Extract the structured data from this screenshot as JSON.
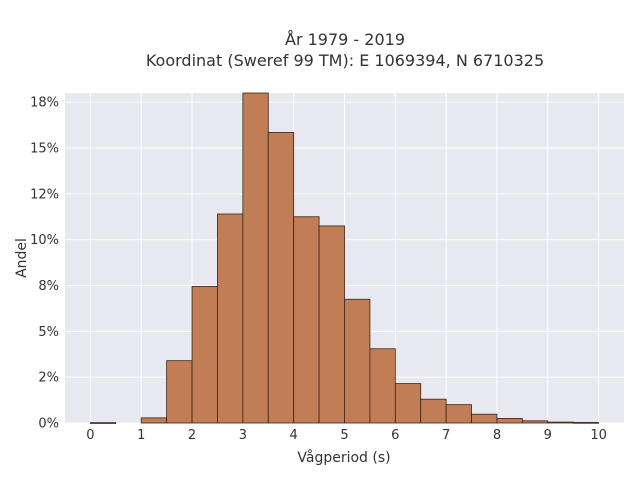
{
  "chart_data": {
    "type": "bar",
    "title_lines": [
      "År 1979 - 2019",
      "Koordinat (Sweref 99 TM): E 1069394, N 6710325"
    ],
    "xlabel": "Vågperiod (s)",
    "ylabel": "Andel",
    "xlim": [
      -0.5,
      10.5
    ],
    "ylim": [
      0,
      0.18
    ],
    "grid": true,
    "bin_width": 0.5,
    "bins": [
      {
        "x0": 0.0,
        "x1": 0.5,
        "value": 0.0002
      },
      {
        "x0": 0.5,
        "x1": 1.0,
        "value": 0.0
      },
      {
        "x0": 1.0,
        "x1": 1.5,
        "value": 0.0028
      },
      {
        "x0": 1.5,
        "x1": 2.0,
        "value": 0.034
      },
      {
        "x0": 2.0,
        "x1": 2.5,
        "value": 0.0745
      },
      {
        "x0": 2.5,
        "x1": 3.0,
        "value": 0.114
      },
      {
        "x0": 3.0,
        "x1": 3.5,
        "value": 0.18
      },
      {
        "x0": 3.5,
        "x1": 4.0,
        "value": 0.1585
      },
      {
        "x0": 4.0,
        "x1": 4.5,
        "value": 0.1125
      },
      {
        "x0": 4.5,
        "x1": 5.0,
        "value": 0.1075
      },
      {
        "x0": 5.0,
        "x1": 5.5,
        "value": 0.0675
      },
      {
        "x0": 5.5,
        "x1": 6.0,
        "value": 0.0405
      },
      {
        "x0": 6.0,
        "x1": 6.5,
        "value": 0.0215
      },
      {
        "x0": 6.5,
        "x1": 7.0,
        "value": 0.013
      },
      {
        "x0": 7.0,
        "x1": 7.5,
        "value": 0.01
      },
      {
        "x0": 7.5,
        "x1": 8.0,
        "value": 0.0048
      },
      {
        "x0": 8.0,
        "x1": 8.5,
        "value": 0.0025
      },
      {
        "x0": 8.5,
        "x1": 9.0,
        "value": 0.0012
      },
      {
        "x0": 9.0,
        "x1": 9.5,
        "value": 0.0005
      },
      {
        "x0": 9.5,
        "x1": 10.0,
        "value": 0.0003
      }
    ],
    "xticks": [
      {
        "value": 0,
        "label": "0"
      },
      {
        "value": 1,
        "label": "1"
      },
      {
        "value": 2,
        "label": "2"
      },
      {
        "value": 3,
        "label": "3"
      },
      {
        "value": 4,
        "label": "4"
      },
      {
        "value": 5,
        "label": "5"
      },
      {
        "value": 6,
        "label": "6"
      },
      {
        "value": 7,
        "label": "7"
      },
      {
        "value": 8,
        "label": "8"
      },
      {
        "value": 9,
        "label": "9"
      },
      {
        "value": 10,
        "label": "10"
      }
    ],
    "yticks": [
      {
        "value": 0.0,
        "label": "0%"
      },
      {
        "value": 0.025,
        "label": "2%"
      },
      {
        "value": 0.05,
        "label": "5%"
      },
      {
        "value": 0.075,
        "label": "8%"
      },
      {
        "value": 0.1,
        "label": "10%"
      },
      {
        "value": 0.125,
        "label": "12%"
      },
      {
        "value": 0.15,
        "label": "15%"
      },
      {
        "value": 0.175,
        "label": "18%"
      }
    ],
    "colors": {
      "bar_fill": "#c07d56",
      "bar_edge": "#3d2416",
      "plot_bg": "#e8e8f0",
      "grid": "#ffffff",
      "text": "#333333"
    }
  }
}
